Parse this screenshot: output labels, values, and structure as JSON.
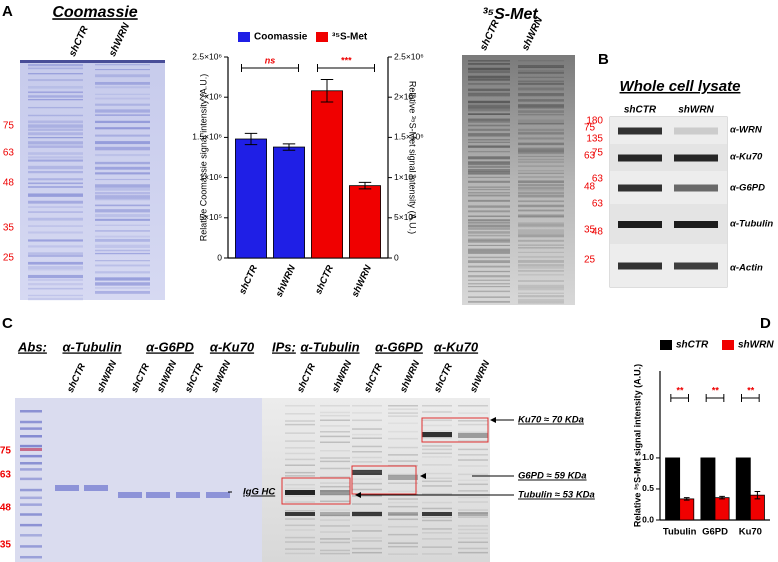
{
  "panel_labels": [
    "A",
    "B",
    "C",
    "D"
  ],
  "panel_a": {
    "coomassie_title": "Coomassie",
    "coomassie_lanes": [
      "shCTR",
      "shWRN"
    ],
    "coomassie_markers": [
      "75",
      "63",
      "48",
      "35",
      "25"
    ],
    "met_title": "³⁵S-Met",
    "met_lanes": [
      "shCTR",
      "shWRN"
    ],
    "met_markers": [
      "75",
      "63",
      "48",
      "35",
      "25"
    ]
  },
  "panel_b": {
    "title": "Whole cell lysate",
    "lanes": [
      "shCTR",
      "shWRN"
    ],
    "markers": [
      "180",
      "135",
      "75",
      "63",
      "63",
      "48"
    ],
    "antibodies": [
      "α-WRN",
      "α-Ku70",
      "α-G6PD",
      "α-Tubulin",
      "α-Actin"
    ]
  },
  "panel_c": {
    "abs_label": "Abs:",
    "abs": [
      "α-Tubulin",
      "α-G6PD",
      "α-Ku70"
    ],
    "abs_lanes": [
      "shCTR",
      "shWRN",
      "shCTR",
      "shWRN",
      "shCTR",
      "shWRN"
    ],
    "ips_label": "IPs:",
    "ips": [
      "α-Tubulin",
      "α-G6PD",
      "α-Ku70"
    ],
    "ips_lanes": [
      "shCTR",
      "shWRN",
      "shCTR",
      "shWRN",
      "shCTR",
      "shWRN"
    ],
    "markers": [
      "75",
      "63",
      "48",
      "35"
    ],
    "igg": "IgG HC",
    "bands": [
      "Ku70 ≈ 70 KDa",
      "G6PD ≈ 59 KDa",
      "Tubulin ≈ 53 KDa"
    ]
  },
  "chart_data": [
    {
      "type": "bar",
      "categories": [
        "shCTR",
        "shWRN",
        "shCTR",
        "shWRN"
      ],
      "series": [
        {
          "name": "Coomassie",
          "color": "#1f1fe6",
          "values": [
            1480000,
            1380000,
            null,
            null
          ],
          "errors": [
            70000,
            40000,
            null,
            null
          ]
        },
        {
          "name": "³⁵S-Met",
          "color": "#f00000",
          "axis": "y2",
          "values": [
            null,
            null,
            2080000,
            900000
          ],
          "errors": [
            null,
            null,
            140000,
            40000
          ]
        }
      ],
      "ylabel": "Relative Coomassie signal intensity (A.U.)",
      "y2label": "Relative ³⁵S-Met signal intensity (A.U.)",
      "ylim": [
        0,
        2500000
      ],
      "yticks": [
        0,
        {
          "value": 500000,
          "label": "5×10⁵"
        },
        {
          "value": 1000000,
          "label": "1×10⁶"
        },
        {
          "value": 1500000,
          "label": "1.5×10⁶"
        },
        {
          "value": 2000000,
          "label": "2×10⁶"
        },
        {
          "value": 2500000,
          "label": "2.5×10⁶"
        }
      ],
      "y2lim": [
        0,
        2500000
      ],
      "y2ticks": [
        0,
        {
          "value": 500000,
          "label": "5×10⁵"
        },
        {
          "value": 1000000,
          "label": "1×10⁶"
        },
        {
          "value": 1500000,
          "label": "1.5×10⁶"
        },
        {
          "value": 2000000,
          "label": "2×10⁶"
        },
        {
          "value": 2500000,
          "label": "2.5×10⁶"
        }
      ],
      "annotations": [
        "ns",
        "***"
      ]
    },
    {
      "type": "bar",
      "categories": [
        "Tubulin",
        "G6PD",
        "Ku70"
      ],
      "series": [
        {
          "name": "shCTR",
          "color": "#000000",
          "values": [
            1,
            1,
            1
          ]
        },
        {
          "name": "shWRN",
          "color": "#f00000",
          "values": [
            0.34,
            0.36,
            0.4
          ],
          "errors": [
            0.02,
            0.02,
            0.06
          ]
        }
      ],
      "ylabel": "Relative ³⁵S-Met signal intensity (A.U.)",
      "ylim": [
        0,
        2.4
      ],
      "yticks": [
        {
          "value": 0,
          "label": "0.0"
        },
        0.5,
        {
          "value": 1,
          "label": "1.0"
        }
      ],
      "annotations": [
        "**",
        "**",
        "**"
      ]
    }
  ]
}
